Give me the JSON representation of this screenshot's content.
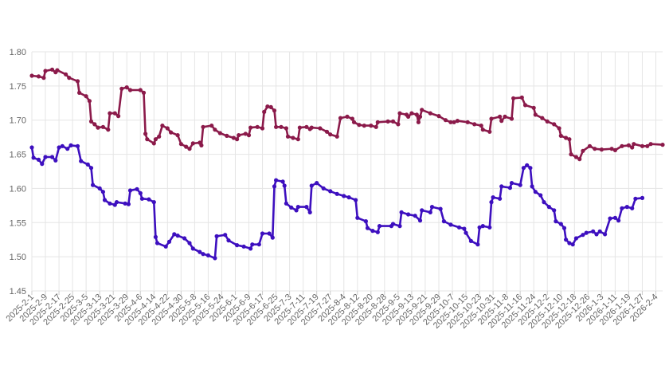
{
  "chart_data": {
    "type": "line",
    "title": "",
    "xlabel": "",
    "ylabel": "",
    "ylim": [
      1.45,
      1.8
    ],
    "yticks": [
      "1.45",
      "1.50",
      "1.55",
      "1.60",
      "1.65",
      "1.70",
      "1.75",
      "1.80"
    ],
    "xtick_labels": [
      "2025-2-1",
      "2025-2-9",
      "2025-2-17",
      "2025-2-25",
      "2025-3-5",
      "2025-3-13",
      "2025-3-21",
      "2025-3-29",
      "2025-4-6",
      "2025-4-14",
      "2025-4-22",
      "2025-4-30",
      "2025-5-8",
      "2025-5-16",
      "2025-5-24",
      "2025-6-1",
      "2025-6-9",
      "2025-6-17",
      "2025-6-25",
      "2025-7-3",
      "2025-7-11",
      "2025-7-19",
      "2025-7-27",
      "2025-8-4",
      "2025-8-12",
      "2025-8-20",
      "2025-8-28",
      "2025-9-5",
      "2025-9-13",
      "2025-9-21",
      "2025-9-29",
      "2025-10-7",
      "2025-10-15",
      "2025-10-23",
      "2025-10-31",
      "2025-11-8",
      "2025-11-16",
      "2025-11-24",
      "2025-12-2",
      "2025-12-10",
      "2025-12-18",
      "2025-12-26",
      "2026-1-3",
      "2026-1-11",
      "2026-1-19",
      "2026-1-27",
      "2026-2-4"
    ],
    "grid": true,
    "legend": "none",
    "x_start": "2025-2-1",
    "x_end": "2026-2-8",
    "series": [
      {
        "color": "#8b1a4a",
        "points": [
          [
            "2025-2-1",
            1.765
          ],
          [
            "2025-2-5",
            1.764
          ],
          [
            "2025-2-8",
            1.762
          ],
          [
            "2025-2-9",
            1.772
          ],
          [
            "2025-2-13",
            1.774
          ],
          [
            "2025-2-15",
            1.77
          ],
          [
            "2025-2-16",
            1.773
          ],
          [
            "2025-2-21",
            1.767
          ],
          [
            "2025-2-23",
            1.762
          ],
          [
            "2025-2-28",
            1.757
          ],
          [
            "2025-3-1",
            1.74
          ],
          [
            "2025-3-5",
            1.735
          ],
          [
            "2025-3-7",
            1.728
          ],
          [
            "2025-3-8",
            1.698
          ],
          [
            "2025-3-10",
            1.694
          ],
          [
            "2025-3-12",
            1.689
          ],
          [
            "2025-3-15",
            1.69
          ],
          [
            "2025-3-18",
            1.686
          ],
          [
            "2025-3-19",
            1.71
          ],
          [
            "2025-3-22",
            1.71
          ],
          [
            "2025-3-24",
            1.706
          ],
          [
            "2025-3-26",
            1.746
          ],
          [
            "2025-3-29",
            1.748
          ],
          [
            "2025-3-31",
            1.744
          ],
          [
            "2025-4-6",
            1.744
          ],
          [
            "2025-4-8",
            1.74
          ],
          [
            "2025-4-9",
            1.68
          ],
          [
            "2025-4-10",
            1.672
          ],
          [
            "2025-4-14",
            1.666
          ],
          [
            "2025-4-15",
            1.672
          ],
          [
            "2025-4-17",
            1.676
          ],
          [
            "2025-4-19",
            1.692
          ],
          [
            "2025-4-22",
            1.688
          ],
          [
            "2025-4-24",
            1.682
          ],
          [
            "2025-4-28",
            1.678
          ],
          [
            "2025-4-30",
            1.665
          ],
          [
            "2025-5-3",
            1.661
          ],
          [
            "2025-5-5",
            1.658
          ],
          [
            "2025-5-7",
            1.666
          ],
          [
            "2025-5-11",
            1.667
          ],
          [
            "2025-5-12",
            1.663
          ],
          [
            "2025-5-13",
            1.69
          ],
          [
            "2025-5-18",
            1.692
          ],
          [
            "2025-5-20",
            1.686
          ],
          [
            "2025-5-23",
            1.681
          ],
          [
            "2025-5-27",
            1.677
          ],
          [
            "2025-5-31",
            1.674
          ],
          [
            "2025-6-2",
            1.672
          ],
          [
            "2025-6-3",
            1.678
          ],
          [
            "2025-6-7",
            1.68
          ],
          [
            "2025-6-9",
            1.678
          ],
          [
            "2025-6-10",
            1.689
          ],
          [
            "2025-6-14",
            1.69
          ],
          [
            "2025-6-17",
            1.688
          ],
          [
            "2025-6-18",
            1.712
          ],
          [
            "2025-6-20",
            1.72
          ],
          [
            "2025-6-22",
            1.719
          ],
          [
            "2025-6-24",
            1.714
          ],
          [
            "2025-6-25",
            1.69
          ],
          [
            "2025-6-28",
            1.69
          ],
          [
            "2025-7-1",
            1.688
          ],
          [
            "2025-7-2",
            1.676
          ],
          [
            "2025-7-5",
            1.674
          ],
          [
            "2025-7-8",
            1.672
          ],
          [
            "2025-7-9",
            1.689
          ],
          [
            "2025-7-13",
            1.69
          ],
          [
            "2025-7-15",
            1.687
          ],
          [
            "2025-7-16",
            1.689
          ],
          [
            "2025-7-21",
            1.688
          ],
          [
            "2025-7-25",
            1.683
          ],
          [
            "2025-7-27",
            1.679
          ],
          [
            "2025-7-31",
            1.676
          ],
          [
            "2025-8-2",
            1.703
          ],
          [
            "2025-8-6",
            1.705
          ],
          [
            "2025-8-9",
            1.702
          ],
          [
            "2025-8-10",
            1.697
          ],
          [
            "2025-8-13",
            1.693
          ],
          [
            "2025-8-16",
            1.692
          ],
          [
            "2025-8-20",
            1.692
          ],
          [
            "2025-8-23",
            1.69
          ],
          [
            "2025-8-24",
            1.697
          ],
          [
            "2025-8-30",
            1.698
          ],
          [
            "2025-9-2",
            1.698
          ],
          [
            "2025-9-5",
            1.694
          ],
          [
            "2025-9-6",
            1.71
          ],
          [
            "2025-9-10",
            1.708
          ],
          [
            "2025-9-11",
            1.705
          ],
          [
            "2025-9-13",
            1.71
          ],
          [
            "2025-9-16",
            1.708
          ],
          [
            "2025-9-17",
            1.697
          ],
          [
            "2025-9-18",
            1.705
          ],
          [
            "2025-9-19",
            1.715
          ],
          [
            "2025-9-24",
            1.71
          ],
          [
            "2025-9-29",
            1.706
          ],
          [
            "2025-10-3",
            1.7
          ],
          [
            "2025-10-6",
            1.697
          ],
          [
            "2025-10-8",
            1.697
          ],
          [
            "2025-10-10",
            1.699
          ],
          [
            "2025-10-16",
            1.697
          ],
          [
            "2025-10-20",
            1.694
          ],
          [
            "2025-10-24",
            1.692
          ],
          [
            "2025-10-25",
            1.686
          ],
          [
            "2025-10-29",
            1.683
          ],
          [
            "2025-10-30",
            1.702
          ],
          [
            "2025-11-4",
            1.705
          ],
          [
            "2025-11-5",
            1.699
          ],
          [
            "2025-11-7",
            1.705
          ],
          [
            "2025-11-11",
            1.702
          ],
          [
            "2025-11-12",
            1.732
          ],
          [
            "2025-11-17",
            1.733
          ],
          [
            "2025-11-19",
            1.722
          ],
          [
            "2025-11-24",
            1.718
          ],
          [
            "2025-11-25",
            1.708
          ],
          [
            "2025-11-29",
            1.703
          ],
          [
            "2025-12-2",
            1.698
          ],
          [
            "2025-12-6",
            1.694
          ],
          [
            "2025-12-9",
            1.688
          ],
          [
            "2025-12-10",
            1.677
          ],
          [
            "2025-12-13",
            1.674
          ],
          [
            "2025-12-15",
            1.672
          ],
          [
            "2025-12-16",
            1.65
          ],
          [
            "2025-12-19",
            1.646
          ],
          [
            "2025-12-21",
            1.643
          ],
          [
            "2025-12-23",
            1.655
          ],
          [
            "2025-12-27",
            1.662
          ],
          [
            "2025-12-30",
            1.658
          ],
          [
            "2026-1-3",
            1.657
          ],
          [
            "2026-1-9",
            1.658
          ],
          [
            "2026-1-11",
            1.656
          ],
          [
            "2026-1-15",
            1.662
          ],
          [
            "2026-1-19",
            1.663
          ],
          [
            "2026-1-21",
            1.66
          ],
          [
            "2026-1-22",
            1.665
          ],
          [
            "2026-1-27",
            1.662
          ],
          [
            "2026-1-30",
            1.662
          ],
          [
            "2026-2-1",
            1.665
          ],
          [
            "2026-2-8",
            1.664
          ]
        ]
      },
      {
        "color": "#3d0fbf",
        "points": [
          [
            "2025-2-1",
            1.66
          ],
          [
            "2025-2-2",
            1.645
          ],
          [
            "2025-2-5",
            1.642
          ],
          [
            "2025-2-7",
            1.636
          ],
          [
            "2025-2-9",
            1.646
          ],
          [
            "2025-2-13",
            1.646
          ],
          [
            "2025-2-15",
            1.641
          ],
          [
            "2025-2-17",
            1.66
          ],
          [
            "2025-2-19",
            1.662
          ],
          [
            "2025-2-22",
            1.658
          ],
          [
            "2025-2-24",
            1.663
          ],
          [
            "2025-2-28",
            1.662
          ],
          [
            "2025-3-2",
            1.64
          ],
          [
            "2025-3-6",
            1.635
          ],
          [
            "2025-3-8",
            1.63
          ],
          [
            "2025-3-9",
            1.605
          ],
          [
            "2025-3-13",
            1.6
          ],
          [
            "2025-3-15",
            1.595
          ],
          [
            "2025-3-16",
            1.583
          ],
          [
            "2025-3-19",
            1.578
          ],
          [
            "2025-3-22",
            1.576
          ],
          [
            "2025-3-23",
            1.58
          ],
          [
            "2025-3-28",
            1.578
          ],
          [
            "2025-3-30",
            1.577
          ],
          [
            "2025-3-31",
            1.597
          ],
          [
            "2025-4-4",
            1.599
          ],
          [
            "2025-4-6",
            1.593
          ],
          [
            "2025-4-7",
            1.585
          ],
          [
            "2025-4-11",
            1.584
          ],
          [
            "2025-4-14",
            1.58
          ],
          [
            "2025-4-15",
            1.529
          ],
          [
            "2025-4-16",
            1.52
          ],
          [
            "2025-4-21",
            1.515
          ],
          [
            "2025-4-23",
            1.522
          ],
          [
            "2025-4-26",
            1.533
          ],
          [
            "2025-4-28",
            1.531
          ],
          [
            "2025-5-2",
            1.527
          ],
          [
            "2025-5-5",
            1.52
          ],
          [
            "2025-5-7",
            1.512
          ],
          [
            "2025-5-11",
            1.507
          ],
          [
            "2025-5-13",
            1.504
          ],
          [
            "2025-5-16",
            1.502
          ],
          [
            "2025-5-20",
            1.498
          ],
          [
            "2025-5-21",
            1.53
          ],
          [
            "2025-5-26",
            1.532
          ],
          [
            "2025-5-28",
            1.524
          ],
          [
            "2025-6-2",
            1.517
          ],
          [
            "2025-6-6",
            1.515
          ],
          [
            "2025-6-10",
            1.512
          ],
          [
            "2025-6-11",
            1.518
          ],
          [
            "2025-6-15",
            1.518
          ],
          [
            "2025-6-17",
            1.534
          ],
          [
            "2025-6-21",
            1.534
          ],
          [
            "2025-6-23",
            1.528
          ],
          [
            "2025-6-24",
            1.603
          ],
          [
            "2025-6-25",
            1.612
          ],
          [
            "2025-6-29",
            1.61
          ],
          [
            "2025-6-30",
            1.604
          ],
          [
            "2025-7-1",
            1.578
          ],
          [
            "2025-7-4",
            1.572
          ],
          [
            "2025-7-7",
            1.568
          ],
          [
            "2025-7-8",
            1.573
          ],
          [
            "2025-7-13",
            1.573
          ],
          [
            "2025-7-15",
            1.565
          ],
          [
            "2025-7-16",
            1.604
          ],
          [
            "2025-7-19",
            1.608
          ],
          [
            "2025-7-23",
            1.6
          ],
          [
            "2025-7-27",
            1.596
          ],
          [
            "2025-7-31",
            1.592
          ],
          [
            "2025-8-4",
            1.589
          ],
          [
            "2025-8-7",
            1.587
          ],
          [
            "2025-8-11",
            1.583
          ],
          [
            "2025-8-12",
            1.557
          ],
          [
            "2025-8-17",
            1.552
          ],
          [
            "2025-8-18",
            1.542
          ],
          [
            "2025-8-21",
            1.538
          ],
          [
            "2025-8-24",
            1.536
          ],
          [
            "2025-8-25",
            1.545
          ],
          [
            "2025-9-1",
            1.545
          ],
          [
            "2025-9-2",
            1.548
          ],
          [
            "2025-9-6",
            1.545
          ],
          [
            "2025-9-7",
            1.565
          ],
          [
            "2025-9-11",
            1.562
          ],
          [
            "2025-9-15",
            1.56
          ],
          [
            "2025-9-18",
            1.553
          ],
          [
            "2025-9-19",
            1.568
          ],
          [
            "2025-9-24",
            1.565
          ],
          [
            "2025-9-25",
            1.573
          ],
          [
            "2025-9-30",
            1.57
          ],
          [
            "2025-10-2",
            1.552
          ],
          [
            "2025-10-6",
            1.547
          ],
          [
            "2025-10-11",
            1.543
          ],
          [
            "2025-10-14",
            1.541
          ],
          [
            "2025-10-15",
            1.535
          ],
          [
            "2025-10-18",
            1.523
          ],
          [
            "2025-10-22",
            1.518
          ],
          [
            "2025-10-23",
            1.543
          ],
          [
            "2025-10-25",
            1.545
          ],
          [
            "2025-10-29",
            1.543
          ],
          [
            "2025-10-30",
            1.58
          ],
          [
            "2025-10-31",
            1.587
          ],
          [
            "2025-11-4",
            1.585
          ],
          [
            "2025-11-5",
            1.603
          ],
          [
            "2025-11-10",
            1.601
          ],
          [
            "2025-11-11",
            1.608
          ],
          [
            "2025-11-16",
            1.605
          ],
          [
            "2025-11-18",
            1.63
          ],
          [
            "2025-11-20",
            1.634
          ],
          [
            "2025-11-22",
            1.63
          ],
          [
            "2025-11-23",
            1.603
          ],
          [
            "2025-11-25",
            1.595
          ],
          [
            "2025-11-28",
            1.59
          ],
          [
            "2025-11-30",
            1.58
          ],
          [
            "2025-12-3",
            1.573
          ],
          [
            "2025-12-6",
            1.568
          ],
          [
            "2025-12-7",
            1.552
          ],
          [
            "2025-12-10",
            1.548
          ],
          [
            "2025-12-12",
            1.542
          ],
          [
            "2025-12-13",
            1.525
          ],
          [
            "2025-12-15",
            1.52
          ],
          [
            "2025-12-17",
            1.518
          ],
          [
            "2025-12-19",
            1.527
          ],
          [
            "2025-12-23",
            1.532
          ],
          [
            "2025-12-25",
            1.535
          ],
          [
            "2025-12-29",
            1.537
          ],
          [
            "2025-12-31",
            1.533
          ],
          [
            "2026-1-2",
            1.537
          ],
          [
            "2026-1-5",
            1.533
          ],
          [
            "2026-1-8",
            1.556
          ],
          [
            "2026-1-11",
            1.557
          ],
          [
            "2026-1-13",
            1.553
          ],
          [
            "2026-1-15",
            1.571
          ],
          [
            "2026-1-18",
            1.573
          ],
          [
            "2026-1-21",
            1.571
          ],
          [
            "2026-1-23",
            1.585
          ],
          [
            "2026-1-27",
            1.586
          ]
        ]
      }
    ]
  }
}
